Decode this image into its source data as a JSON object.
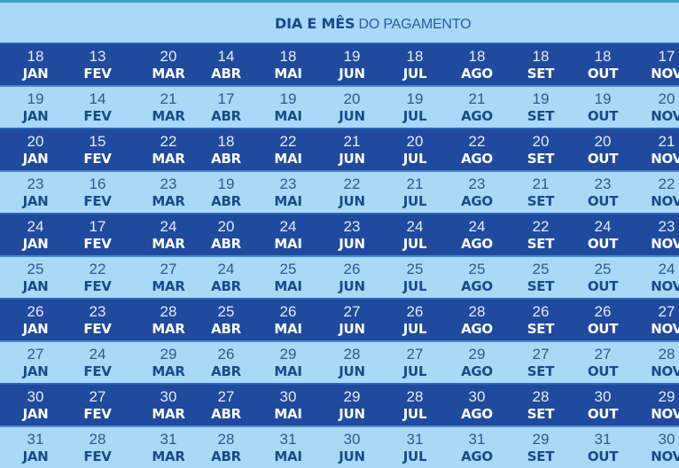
{
  "header": {
    "title_bold": "DIA E MÊS",
    "title_rest": " DO PAGAMENTO"
  },
  "colors": {
    "dark_row": "#1f4a9e",
    "light_row": "#a9d9f6",
    "top_line": "#3aa3c9",
    "title_text": "#1a4790"
  },
  "months": [
    "JAN",
    "FEV",
    "MAR",
    "ABR",
    "MAI",
    "JUN",
    "JUL",
    "AGO",
    "SET",
    "OUT",
    "NOV"
  ],
  "rows": [
    {
      "style": "dark",
      "days": [
        "18",
        "13",
        "20",
        "14",
        "18",
        "19",
        "18",
        "18",
        "18",
        "18",
        "17"
      ],
      "months": [
        "JAN",
        "FEV",
        "MAR",
        "ABR",
        "MAI",
        "JUN",
        "JUL",
        "AGO",
        "SET",
        "OUT",
        "NOV"
      ]
    },
    {
      "style": "light",
      "days": [
        "19",
        "14",
        "21",
        "17",
        "19",
        "20",
        "19",
        "21",
        "19",
        "19",
        "20"
      ],
      "months": [
        "JAN",
        "FEV",
        "MAR",
        "ABR",
        "MAI",
        "JUN",
        "JUL",
        "AGO",
        "SET",
        "OUT",
        "NOV"
      ]
    },
    {
      "style": "dark",
      "days": [
        "20",
        "15",
        "22",
        "18",
        "22",
        "21",
        "20",
        "22",
        "20",
        "20",
        "21"
      ],
      "months": [
        "JAN",
        "FEV",
        "MAR",
        "ABR",
        "MAI",
        "JUN",
        "JUL",
        "AGO",
        "SET",
        "OUT",
        "NOV"
      ]
    },
    {
      "style": "light",
      "days": [
        "23",
        "16",
        "23",
        "19",
        "23",
        "22",
        "21",
        "23",
        "21",
        "23",
        "22"
      ],
      "months": [
        "JAN",
        "FEV",
        "MAR",
        "ABR",
        "MAI",
        "JUN",
        "JUL",
        "AGO",
        "SET",
        "OUT",
        "NOV"
      ]
    },
    {
      "style": "dark",
      "days": [
        "24",
        "17",
        "24",
        "20",
        "24",
        "23",
        "24",
        "24",
        "22",
        "24",
        "23"
      ],
      "months": [
        "JAN",
        "FEV",
        "MAR",
        "ABR",
        "MAI",
        "JUN",
        "JUL",
        "AGO",
        "SET",
        "OUT",
        "NOV"
      ]
    },
    {
      "style": "light",
      "days": [
        "25",
        "22",
        "27",
        "24",
        "25",
        "26",
        "25",
        "25",
        "25",
        "25",
        "24"
      ],
      "months": [
        "JAN",
        "FEV",
        "MAR",
        "ABR",
        "MAI",
        "JUN",
        "JUL",
        "AGO",
        "SET",
        "OUT",
        "NOV"
      ]
    },
    {
      "style": "dark",
      "days": [
        "26",
        "23",
        "28",
        "25",
        "26",
        "27",
        "26",
        "28",
        "26",
        "26",
        "27"
      ],
      "months": [
        "JAN",
        "FEV",
        "MAR",
        "ABR",
        "MAI",
        "JUN",
        "JUL",
        "AGO",
        "SET",
        "OUT",
        "NOV"
      ]
    },
    {
      "style": "light",
      "days": [
        "27",
        "24",
        "29",
        "26",
        "29",
        "28",
        "27",
        "29",
        "27",
        "27",
        "28"
      ],
      "months": [
        "JAN",
        "FEV",
        "MAR",
        "ABR",
        "MAI",
        "JUN",
        "JUL",
        "AGO",
        "SET",
        "OUT",
        "NOV"
      ]
    },
    {
      "style": "dark",
      "days": [
        "30",
        "27",
        "30",
        "27",
        "30",
        "29",
        "28",
        "30",
        "28",
        "30",
        "29"
      ],
      "months": [
        "JAN",
        "FEV",
        "MAR",
        "ABR",
        "MAI",
        "JUN",
        "JUL",
        "AGO",
        "SET",
        "OUT",
        "NOV"
      ]
    },
    {
      "style": "light",
      "days": [
        "31",
        "28",
        "31",
        "28",
        "31",
        "30",
        "31",
        "31",
        "29",
        "31",
        "30"
      ],
      "months": [
        "JAN",
        "FEV",
        "MAR",
        "ABR",
        "MAI",
        "JUN",
        "JUL",
        "AGO",
        "SET",
        "OUT",
        "NOV"
      ]
    }
  ]
}
